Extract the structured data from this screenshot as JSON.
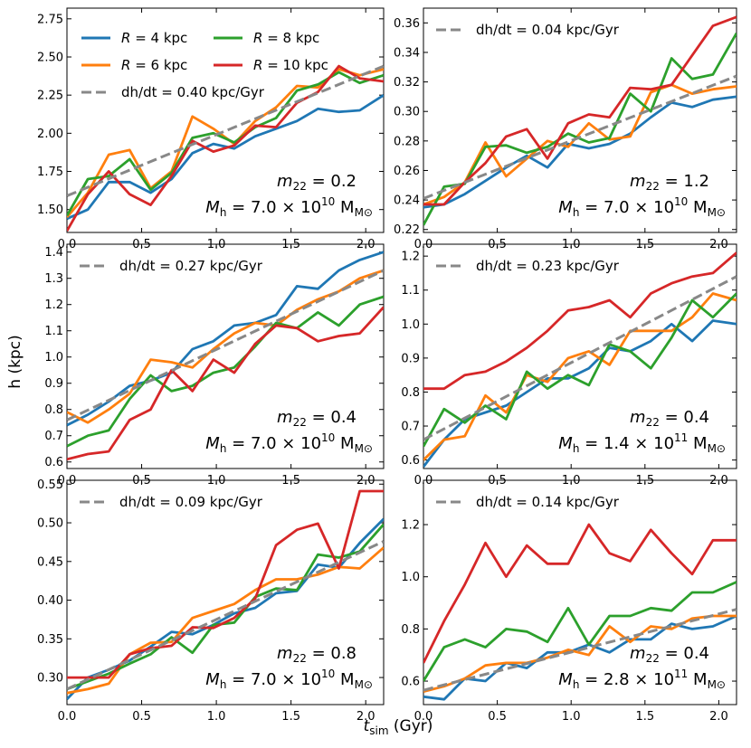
{
  "figure": {
    "ylabel": "h (kpc)",
    "xlabel_main": "t",
    "xlabel_sub": "sim",
    "xlabel_unit": " (Gyr)"
  },
  "legend": {
    "entries": [
      {
        "label": "R = 4 kpc",
        "color": "#1f77b4"
      },
      {
        "label": "R = 8 kpc",
        "color": "#2ca02c"
      },
      {
        "label": "R = 6 kpc",
        "color": "#ff7f0e"
      },
      {
        "label": "R = 10 kpc",
        "color": "#d62728"
      }
    ],
    "fit_color": "#888888"
  },
  "chart_data": [
    {
      "type": "line",
      "xlim": [
        0,
        2.12
      ],
      "ylim": [
        1.35,
        2.82
      ],
      "xticks": [
        0.0,
        0.5,
        1.0,
        1.5,
        2.0
      ],
      "xtick_labels": [
        "0.0",
        "0.5",
        "1.0",
        "1.5",
        "2.0"
      ],
      "yticks": [
        1.5,
        1.75,
        2.0,
        2.25,
        2.5,
        2.75
      ],
      "ytick_labels": [
        "1.50",
        "1.75",
        "2.00",
        "2.25",
        "2.50",
        "2.75"
      ],
      "fit_label": "dh/dt = 0.40 kpc/Gyr",
      "fit": {
        "x": [
          0,
          2.12
        ],
        "y": [
          1.59,
          2.44
        ]
      },
      "m22_label": "m22 = 0.2",
      "mh_label": "Mh = 7.0 × 10^10 M⊙",
      "x": [
        0.0,
        0.14,
        0.28,
        0.42,
        0.56,
        0.7,
        0.84,
        0.98,
        1.12,
        1.26,
        1.4,
        1.54,
        1.68,
        1.82,
        1.96,
        2.12
      ],
      "series": [
        {
          "name": "R = 4 kpc",
          "values": [
            1.44,
            1.5,
            1.68,
            1.68,
            1.61,
            1.7,
            1.87,
            1.93,
            1.9,
            1.98,
            2.03,
            2.08,
            2.16,
            2.14,
            2.15,
            2.25
          ]
        },
        {
          "name": "R = 6 kpc",
          "values": [
            1.45,
            1.61,
            1.86,
            1.89,
            1.64,
            1.75,
            2.11,
            2.03,
            1.93,
            2.08,
            2.17,
            2.31,
            2.3,
            2.42,
            2.38,
            2.42
          ]
        },
        {
          "name": "R = 8 kpc",
          "values": [
            1.46,
            1.7,
            1.72,
            1.83,
            1.63,
            1.74,
            1.97,
            2.0,
            1.94,
            2.04,
            2.1,
            2.28,
            2.32,
            2.4,
            2.33,
            2.38
          ]
        },
        {
          "name": "R = 10 kpc",
          "values": [
            1.36,
            1.6,
            1.75,
            1.6,
            1.53,
            1.72,
            1.95,
            1.88,
            1.92,
            2.05,
            2.04,
            2.2,
            2.27,
            2.44,
            2.36,
            2.34
          ]
        }
      ]
    },
    {
      "type": "line",
      "xlim": [
        0,
        2.12
      ],
      "ylim": [
        0.218,
        0.37
      ],
      "xticks": [
        0.0,
        0.5,
        1.0,
        1.5,
        2.0
      ],
      "xtick_labels": [
        "0.0",
        "0.5",
        "1.0",
        "1.5",
        "2.0"
      ],
      "yticks": [
        0.22,
        0.24,
        0.26,
        0.28,
        0.3,
        0.32,
        0.34,
        0.36
      ],
      "ytick_labels": [
        "0.22",
        "0.24",
        "0.26",
        "0.28",
        "0.30",
        "0.32",
        "0.34",
        "0.36"
      ],
      "fit_label": "dh/dt = 0.04 kpc/Gyr",
      "fit": {
        "x": [
          0,
          2.12
        ],
        "y": [
          0.241,
          0.324
        ]
      },
      "m22_label": "m22 = 1.2",
      "mh_label": "Mh = 7.0 × 10^10 M⊙",
      "x": [
        0.0,
        0.14,
        0.28,
        0.42,
        0.56,
        0.7,
        0.84,
        0.98,
        1.12,
        1.26,
        1.4,
        1.54,
        1.68,
        1.82,
        1.96,
        2.12
      ],
      "series": [
        {
          "name": "R = 4 kpc",
          "values": [
            0.235,
            0.237,
            0.244,
            0.253,
            0.262,
            0.27,
            0.262,
            0.278,
            0.275,
            0.278,
            0.285,
            0.296,
            0.306,
            0.303,
            0.308,
            0.31
          ]
        },
        {
          "name": "R = 6 kpc",
          "values": [
            0.237,
            0.242,
            0.252,
            0.279,
            0.256,
            0.268,
            0.28,
            0.276,
            0.292,
            0.281,
            0.283,
            0.313,
            0.318,
            0.312,
            0.315,
            0.317
          ]
        },
        {
          "name": "R = 8 kpc",
          "values": [
            0.223,
            0.249,
            0.251,
            0.276,
            0.277,
            0.272,
            0.276,
            0.285,
            0.279,
            0.282,
            0.312,
            0.3,
            0.336,
            0.322,
            0.325,
            0.353
          ]
        },
        {
          "name": "R = 10 kpc",
          "values": [
            0.237,
            0.237,
            0.252,
            0.265,
            0.283,
            0.288,
            0.268,
            0.292,
            0.298,
            0.296,
            0.316,
            0.315,
            0.318,
            0.338,
            0.358,
            0.364
          ]
        }
      ]
    },
    {
      "type": "line",
      "xlim": [
        0,
        2.12
      ],
      "ylim": [
        0.575,
        1.43
      ],
      "xticks": [
        0.0,
        0.5,
        1.0,
        1.5,
        2.0
      ],
      "xtick_labels": [
        "0.0",
        "0.5",
        "1.0",
        "1.5",
        "2.0"
      ],
      "yticks": [
        0.6,
        0.7,
        0.8,
        0.9,
        1.0,
        1.1,
        1.2,
        1.3,
        1.4
      ],
      "ytick_labels": [
        "0.6",
        "0.7",
        "0.8",
        "0.9",
        "1.0",
        "1.1",
        "1.2",
        "1.3",
        "1.4"
      ],
      "fit_label": "dh/dt = 0.27 kpc/Gyr",
      "fit": {
        "x": [
          0,
          2.12
        ],
        "y": [
          0.76,
          1.33
        ]
      },
      "m22_label": "m22 = 0.4",
      "mh_label": "Mh = 7.0 × 10^10 M⊙",
      "x": [
        0.0,
        0.14,
        0.28,
        0.42,
        0.56,
        0.7,
        0.84,
        0.98,
        1.12,
        1.26,
        1.4,
        1.54,
        1.68,
        1.82,
        1.96,
        2.12
      ],
      "series": [
        {
          "name": "R = 4 kpc",
          "values": [
            0.74,
            0.78,
            0.83,
            0.89,
            0.91,
            0.94,
            1.03,
            1.06,
            1.12,
            1.13,
            1.16,
            1.27,
            1.26,
            1.33,
            1.37,
            1.4
          ]
        },
        {
          "name": "R = 6 kpc",
          "values": [
            0.79,
            0.75,
            0.8,
            0.86,
            0.99,
            0.98,
            0.96,
            1.03,
            1.09,
            1.13,
            1.12,
            1.18,
            1.22,
            1.25,
            1.3,
            1.33
          ]
        },
        {
          "name": "R = 8 kpc",
          "values": [
            0.66,
            0.7,
            0.72,
            0.84,
            0.93,
            0.87,
            0.89,
            0.94,
            0.96,
            1.04,
            1.13,
            1.11,
            1.17,
            1.12,
            1.2,
            1.23
          ]
        },
        {
          "name": "R = 10 kpc",
          "values": [
            0.61,
            0.63,
            0.64,
            0.76,
            0.8,
            0.95,
            0.87,
            0.99,
            0.94,
            1.05,
            1.12,
            1.11,
            1.06,
            1.08,
            1.09,
            1.19
          ]
        }
      ]
    },
    {
      "type": "line",
      "xlim": [
        0,
        2.12
      ],
      "ylim": [
        0.575,
        1.235
      ],
      "xticks": [
        0.0,
        0.5,
        1.0,
        1.5,
        2.0
      ],
      "xtick_labels": [
        "0.0",
        "0.5",
        "1.0",
        "1.5",
        "2.0"
      ],
      "yticks": [
        0.6,
        0.7,
        0.8,
        0.9,
        1.0,
        1.1,
        1.2
      ],
      "ytick_labels": [
        "0.6",
        "0.7",
        "0.8",
        "0.9",
        "1.0",
        "1.1",
        "1.2"
      ],
      "fit_label": "dh/dt = 0.23 kpc/Gyr",
      "fit": {
        "x": [
          0,
          2.12
        ],
        "y": [
          0.66,
          1.14
        ]
      },
      "m22_label": "m22 = 0.4",
      "mh_label": "Mh = 1.4 × 10^11 M⊙",
      "x": [
        0.0,
        0.14,
        0.28,
        0.42,
        0.56,
        0.7,
        0.84,
        0.98,
        1.12,
        1.26,
        1.4,
        1.54,
        1.68,
        1.82,
        1.96,
        2.12
      ],
      "series": [
        {
          "name": "R = 4 kpc",
          "values": [
            0.58,
            0.66,
            0.72,
            0.74,
            0.76,
            0.8,
            0.84,
            0.84,
            0.87,
            0.93,
            0.92,
            0.95,
            1.0,
            0.95,
            1.01,
            1.0
          ]
        },
        {
          "name": "R = 6 kpc",
          "values": [
            0.6,
            0.66,
            0.67,
            0.79,
            0.74,
            0.85,
            0.83,
            0.9,
            0.92,
            0.88,
            0.98,
            0.98,
            0.98,
            1.02,
            1.09,
            1.07
          ]
        },
        {
          "name": "R = 8 kpc",
          "values": [
            0.64,
            0.75,
            0.71,
            0.76,
            0.72,
            0.86,
            0.81,
            0.85,
            0.82,
            0.94,
            0.92,
            0.87,
            0.96,
            1.07,
            1.02,
            1.09
          ]
        },
        {
          "name": "R = 10 kpc",
          "values": [
            0.81,
            0.81,
            0.85,
            0.86,
            0.89,
            0.93,
            0.98,
            1.04,
            1.05,
            1.07,
            1.02,
            1.09,
            1.12,
            1.14,
            1.15,
            1.21
          ]
        }
      ]
    },
    {
      "type": "line",
      "xlim": [
        0,
        2.12
      ],
      "ylim": [
        0.265,
        0.555
      ],
      "xticks": [
        0.0,
        0.5,
        1.0,
        1.5,
        2.0
      ],
      "xtick_labels": [
        "0.0",
        "0.5",
        "1.0",
        "1.5",
        "2.0"
      ],
      "yticks": [
        0.3,
        0.35,
        0.4,
        0.45,
        0.5,
        0.55
      ],
      "ytick_labels": [
        "0.30",
        "0.35",
        "0.40",
        "0.45",
        "0.50",
        "0.55"
      ],
      "fit_label": "dh/dt = 0.09 kpc/Gyr",
      "fit": {
        "x": [
          0,
          2.12
        ],
        "y": [
          0.285,
          0.476
        ]
      },
      "m22_label": "m22 = 0.8",
      "mh_label": "Mh = 7.0 × 10^10 M⊙",
      "x": [
        0.0,
        0.14,
        0.28,
        0.42,
        0.56,
        0.7,
        0.84,
        0.98,
        1.12,
        1.26,
        1.4,
        1.54,
        1.68,
        1.82,
        1.96,
        2.12
      ],
      "series": [
        {
          "name": "R = 4 kpc",
          "values": [
            0.272,
            0.3,
            0.31,
            0.322,
            0.34,
            0.359,
            0.356,
            0.368,
            0.383,
            0.39,
            0.409,
            0.412,
            0.446,
            0.442,
            0.474,
            0.505
          ]
        },
        {
          "name": "R = 6 kpc",
          "values": [
            0.28,
            0.285,
            0.292,
            0.33,
            0.345,
            0.346,
            0.377,
            0.386,
            0.395,
            0.413,
            0.427,
            0.427,
            0.433,
            0.443,
            0.441,
            0.468
          ]
        },
        {
          "name": "R = 8 kpc",
          "values": [
            0.285,
            0.295,
            0.305,
            0.318,
            0.33,
            0.352,
            0.332,
            0.368,
            0.371,
            0.404,
            0.415,
            0.413,
            0.459,
            0.455,
            0.463,
            0.498
          ]
        },
        {
          "name": "R = 10 kpc",
          "values": [
            0.3,
            0.3,
            0.3,
            0.33,
            0.338,
            0.341,
            0.365,
            0.364,
            0.377,
            0.402,
            0.471,
            0.491,
            0.499,
            0.441,
            0.541,
            0.541
          ]
        }
      ]
    },
    {
      "type": "line",
      "xlim": [
        0,
        2.12
      ],
      "ylim": [
        0.51,
        1.37
      ],
      "xticks": [
        0.0,
        0.5,
        1.0,
        1.5,
        2.0
      ],
      "xtick_labels": [
        "0.0",
        "0.5",
        "1.0",
        "1.5",
        "2.0"
      ],
      "yticks": [
        0.6,
        0.8,
        1.0,
        1.2
      ],
      "ytick_labels": [
        "0.6",
        "0.8",
        "1.0",
        "1.2"
      ],
      "fit_label": "dh/dt = 0.14 kpc/Gyr",
      "fit": {
        "x": [
          0,
          2.12
        ],
        "y": [
          0.565,
          0.875
        ]
      },
      "m22_label": "m22 = 0.4",
      "mh_label": "Mh = 2.8 × 10^11 M⊙",
      "x": [
        0.0,
        0.14,
        0.28,
        0.42,
        0.56,
        0.7,
        0.84,
        0.98,
        1.12,
        1.26,
        1.4,
        1.54,
        1.68,
        1.82,
        1.96,
        2.12
      ],
      "series": [
        {
          "name": "R = 4 kpc",
          "values": [
            0.54,
            0.53,
            0.61,
            0.6,
            0.67,
            0.65,
            0.71,
            0.71,
            0.74,
            0.71,
            0.76,
            0.76,
            0.82,
            0.8,
            0.81,
            0.85
          ]
        },
        {
          "name": "R = 6 kpc",
          "values": [
            0.56,
            0.58,
            0.61,
            0.66,
            0.67,
            0.67,
            0.69,
            0.72,
            0.7,
            0.81,
            0.75,
            0.81,
            0.8,
            0.84,
            0.85,
            0.85
          ]
        },
        {
          "name": "R = 8 kpc",
          "values": [
            0.6,
            0.73,
            0.76,
            0.73,
            0.8,
            0.79,
            0.75,
            0.88,
            0.74,
            0.85,
            0.85,
            0.88,
            0.87,
            0.94,
            0.94,
            0.98
          ]
        },
        {
          "name": "R = 10 kpc",
          "values": [
            0.67,
            0.83,
            0.97,
            1.13,
            1.0,
            1.12,
            1.05,
            1.05,
            1.2,
            1.09,
            1.06,
            1.18,
            1.09,
            1.01,
            1.14,
            1.14
          ]
        }
      ]
    }
  ]
}
